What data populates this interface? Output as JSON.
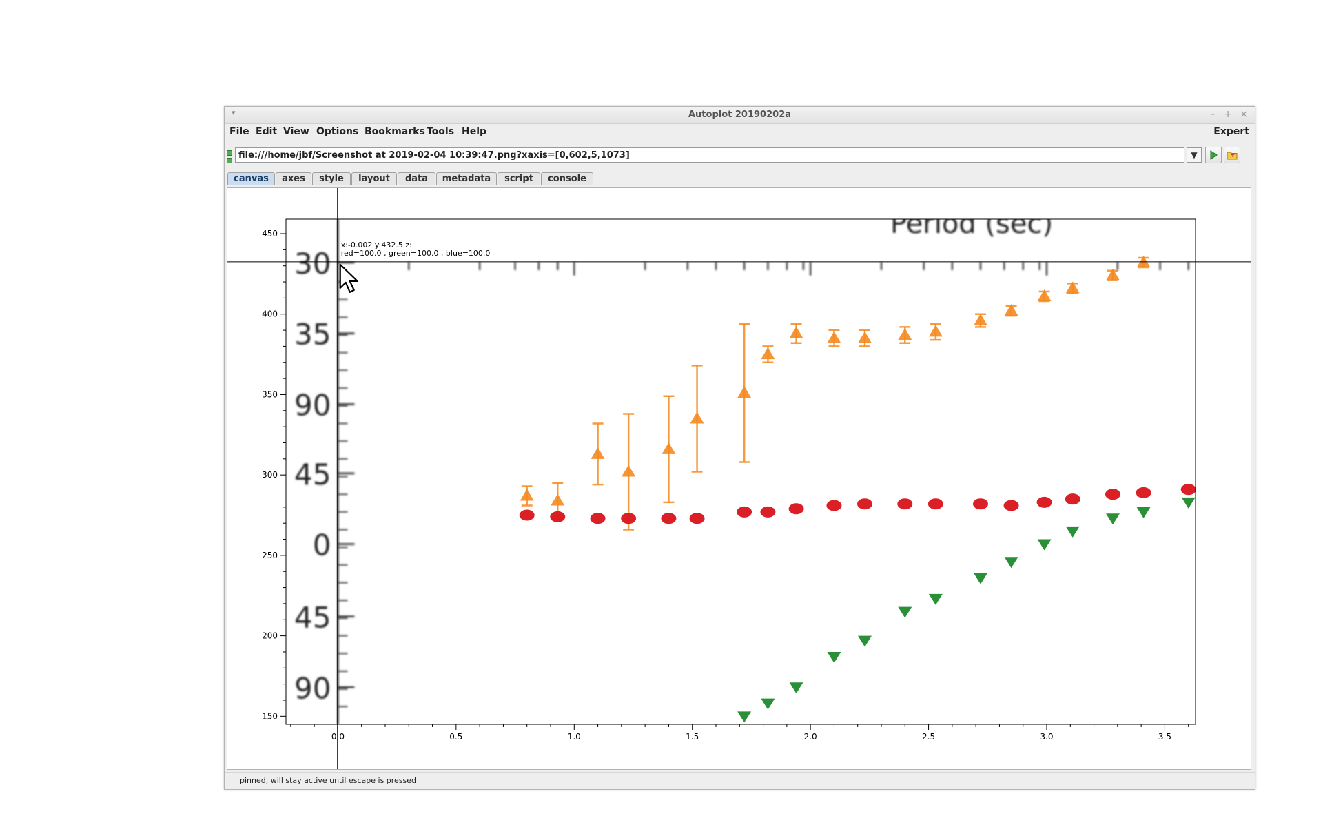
{
  "window": {
    "title": "Autoplot 20190202a",
    "wm_menu_icon": "triangle-down-icon",
    "controls": [
      "–",
      "+",
      "×"
    ]
  },
  "menubar": {
    "items": [
      "File",
      "Edit",
      "View",
      "Options",
      "Bookmarks",
      "Tools",
      "Help"
    ],
    "expert_label": "Expert"
  },
  "url": {
    "value": "file:///home/jbf/Screenshot at 2019-02-04 10:39:47.png?xaxis=[0,602,5,1073]",
    "dropdown_icon": "chevron-down-icon",
    "go_icon": "play-icon",
    "browse_icon": "folder-icon"
  },
  "tabs": [
    {
      "label": "canvas",
      "active": true
    },
    {
      "label": "axes",
      "active": false
    },
    {
      "label": "style",
      "active": false
    },
    {
      "label": "layout",
      "active": false
    },
    {
      "label": "data",
      "active": false
    },
    {
      "label": "metadata",
      "active": false
    },
    {
      "label": "script",
      "active": false
    },
    {
      "label": "console",
      "active": false
    }
  ],
  "readout": {
    "line1": "x:-0.002  y:432.5  z:",
    "line2": "red=100.0 , green=100.0 , blue=100.0"
  },
  "status": {
    "text": "pinned, will stay active until escape is pressed"
  },
  "chart_data": {
    "type": "scatter",
    "x_ticks": [
      "0.0",
      "0.5",
      "1.0",
      "1.5",
      "2.0",
      "2.5",
      "3.0",
      "3.5"
    ],
    "y_ticks": [
      "150",
      "200",
      "250",
      "300",
      "350",
      "400",
      "450"
    ],
    "xlim": [
      -0.22,
      3.63
    ],
    "ylim": [
      145,
      459
    ],
    "crosshair": {
      "x": -0.002,
      "y": 432.5
    },
    "embedded_image_text": {
      "title_fragment": "Period (sec)",
      "left_labels": [
        "30",
        "35",
        "90",
        "45",
        "0",
        "45",
        "90"
      ]
    },
    "series": [
      {
        "color": "#f58a1f",
        "marker": "triangle-up",
        "points": [
          {
            "x": 0.8,
            "y": 287,
            "err": 6
          },
          {
            "x": 0.93,
            "y": 284,
            "err": 11
          },
          {
            "x": 1.1,
            "y": 313,
            "err": 19
          },
          {
            "x": 1.23,
            "y": 302,
            "err": 36
          },
          {
            "x": 1.4,
            "y": 316,
            "err": 33
          },
          {
            "x": 1.52,
            "y": 335,
            "err": 33
          },
          {
            "x": 1.72,
            "y": 351,
            "err": 43
          },
          {
            "x": 1.82,
            "y": 375,
            "err": 5
          },
          {
            "x": 1.94,
            "y": 388,
            "err": 6
          },
          {
            "x": 2.1,
            "y": 385,
            "err": 5
          },
          {
            "x": 2.23,
            "y": 385,
            "err": 5
          },
          {
            "x": 2.4,
            "y": 387,
            "err": 5
          },
          {
            "x": 2.53,
            "y": 389,
            "err": 5
          },
          {
            "x": 2.72,
            "y": 396,
            "err": 4
          },
          {
            "x": 2.85,
            "y": 402,
            "err": 3
          },
          {
            "x": 2.99,
            "y": 411,
            "err": 3
          },
          {
            "x": 3.11,
            "y": 416,
            "err": 3
          },
          {
            "x": 3.28,
            "y": 424,
            "err": 3
          },
          {
            "x": 3.41,
            "y": 432,
            "err": 3
          }
        ]
      },
      {
        "color": "#d9131b",
        "marker": "ellipse",
        "points": [
          {
            "x": 0.8,
            "y": 275
          },
          {
            "x": 0.93,
            "y": 274
          },
          {
            "x": 1.1,
            "y": 273
          },
          {
            "x": 1.23,
            "y": 273
          },
          {
            "x": 1.4,
            "y": 273
          },
          {
            "x": 1.52,
            "y": 273
          },
          {
            "x": 1.72,
            "y": 277
          },
          {
            "x": 1.82,
            "y": 277
          },
          {
            "x": 1.94,
            "y": 279
          },
          {
            "x": 2.1,
            "y": 281
          },
          {
            "x": 2.23,
            "y": 282
          },
          {
            "x": 2.4,
            "y": 282
          },
          {
            "x": 2.53,
            "y": 282
          },
          {
            "x": 2.72,
            "y": 282
          },
          {
            "x": 2.85,
            "y": 281
          },
          {
            "x": 2.99,
            "y": 283
          },
          {
            "x": 3.11,
            "y": 285
          },
          {
            "x": 3.28,
            "y": 288
          },
          {
            "x": 3.41,
            "y": 289
          },
          {
            "x": 3.6,
            "y": 291
          }
        ]
      },
      {
        "color": "#1f8a2c",
        "marker": "triangle-down",
        "points": [
          {
            "x": 1.72,
            "y": 150
          },
          {
            "x": 1.82,
            "y": 158
          },
          {
            "x": 1.94,
            "y": 168
          },
          {
            "x": 2.1,
            "y": 187
          },
          {
            "x": 2.23,
            "y": 197
          },
          {
            "x": 2.4,
            "y": 215
          },
          {
            "x": 2.53,
            "y": 223
          },
          {
            "x": 2.72,
            "y": 236
          },
          {
            "x": 2.85,
            "y": 246
          },
          {
            "x": 2.99,
            "y": 257
          },
          {
            "x": 3.11,
            "y": 265
          },
          {
            "x": 3.28,
            "y": 273
          },
          {
            "x": 3.41,
            "y": 277
          },
          {
            "x": 3.6,
            "y": 283
          }
        ]
      }
    ]
  }
}
